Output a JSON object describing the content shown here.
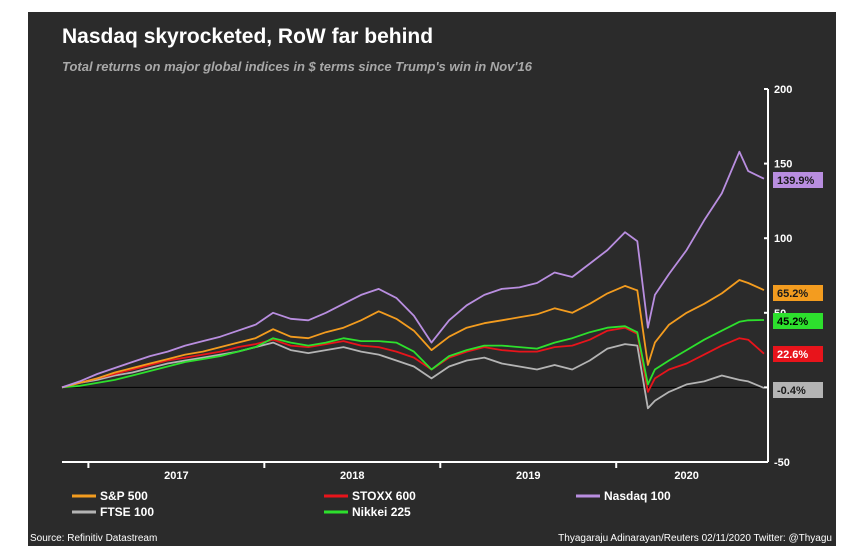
{
  "chart_data": {
    "type": "line",
    "title": "Nasdaq skyrocketed, RoW far behind",
    "subtitle": "Total returns on major global indices in $ terms since Trump's win in Nov'16",
    "ylim": [
      -50,
      200
    ],
    "yticks": [
      -50,
      0,
      50,
      100,
      150,
      200
    ],
    "yticklabels": [
      "-50",
      "",
      "50",
      "100",
      "150",
      "200"
    ],
    "xlim": [
      2016.85,
      2020.84
    ],
    "xticks": [
      2017,
      2018,
      2019,
      2020
    ],
    "xlabels": [
      {
        "x": 2017.5,
        "label": "2017"
      },
      {
        "x": 2018.5,
        "label": "2018"
      },
      {
        "x": 2019.5,
        "label": "2019"
      },
      {
        "x": 2020.4,
        "label": "2020"
      }
    ],
    "series": [
      {
        "name": "FTSE 100",
        "color": "#b4b4b4",
        "end_label": "-0.4%",
        "x": [
          2016.85,
          2016.95,
          2017.05,
          2017.15,
          2017.25,
          2017.35,
          2017.45,
          2017.55,
          2017.65,
          2017.75,
          2017.85,
          2017.95,
          2018.05,
          2018.15,
          2018.25,
          2018.35,
          2018.45,
          2018.55,
          2018.65,
          2018.75,
          2018.85,
          2018.95,
          2019.05,
          2019.15,
          2019.25,
          2019.35,
          2019.45,
          2019.55,
          2019.65,
          2019.75,
          2019.85,
          2019.95,
          2020.05,
          2020.12,
          2020.18,
          2020.22,
          2020.3,
          2020.4,
          2020.5,
          2020.6,
          2020.7,
          2020.75,
          2020.84
        ],
        "y": [
          0,
          3,
          5,
          8,
          10,
          13,
          16,
          18,
          20,
          22,
          24,
          27,
          30,
          25,
          23,
          25,
          27,
          24,
          22,
          18,
          14,
          6,
          14,
          18,
          20,
          16,
          14,
          12,
          15,
          12,
          18,
          26,
          29,
          28,
          -14,
          -9,
          -3,
          2,
          4,
          8,
          5,
          4,
          -0.4
        ]
      },
      {
        "name": "STOXX 600",
        "color": "#e8141b",
        "end_label": "22.6%",
        "x": [
          2016.85,
          2016.95,
          2017.05,
          2017.15,
          2017.25,
          2017.35,
          2017.45,
          2017.55,
          2017.65,
          2017.75,
          2017.85,
          2017.95,
          2018.05,
          2018.15,
          2018.25,
          2018.35,
          2018.45,
          2018.55,
          2018.65,
          2018.75,
          2018.85,
          2018.95,
          2019.05,
          2019.15,
          2019.25,
          2019.35,
          2019.45,
          2019.55,
          2019.65,
          2019.75,
          2019.85,
          2019.95,
          2020.05,
          2020.12,
          2020.18,
          2020.22,
          2020.3,
          2020.4,
          2020.5,
          2020.6,
          2020.7,
          2020.75,
          2020.84
        ],
        "y": [
          0,
          3,
          6,
          9,
          12,
          15,
          18,
          20,
          22,
          24,
          27,
          29,
          32,
          28,
          27,
          29,
          31,
          28,
          27,
          24,
          20,
          12,
          20,
          24,
          27,
          25,
          24,
          24,
          27,
          28,
          32,
          38,
          40,
          36,
          -3,
          6,
          12,
          16,
          22,
          28,
          33,
          32,
          22.6
        ]
      },
      {
        "name": "Nikkei 225",
        "color": "#2de02d",
        "end_label": "45.2%",
        "x": [
          2016.85,
          2016.95,
          2017.05,
          2017.15,
          2017.25,
          2017.35,
          2017.45,
          2017.55,
          2017.65,
          2017.75,
          2017.85,
          2017.95,
          2018.05,
          2018.15,
          2018.25,
          2018.35,
          2018.45,
          2018.55,
          2018.65,
          2018.75,
          2018.85,
          2018.95,
          2019.05,
          2019.15,
          2019.25,
          2019.35,
          2019.45,
          2019.55,
          2019.65,
          2019.75,
          2019.85,
          2019.95,
          2020.05,
          2020.12,
          2020.18,
          2020.22,
          2020.3,
          2020.4,
          2020.5,
          2020.6,
          2020.7,
          2020.75,
          2020.84
        ],
        "y": [
          0,
          1,
          3,
          5,
          8,
          11,
          14,
          17,
          19,
          21,
          24,
          27,
          33,
          30,
          28,
          30,
          33,
          31,
          31,
          30,
          24,
          12,
          21,
          25,
          28,
          28,
          27,
          26,
          30,
          33,
          37,
          40,
          41,
          37,
          2,
          12,
          18,
          25,
          32,
          38,
          44,
          45,
          45.2
        ]
      },
      {
        "name": "S&P 500",
        "color": "#f39c1f",
        "end_label": "65.2%",
        "x": [
          2016.85,
          2016.95,
          2017.05,
          2017.15,
          2017.25,
          2017.35,
          2017.45,
          2017.55,
          2017.65,
          2017.75,
          2017.85,
          2017.95,
          2018.05,
          2018.15,
          2018.25,
          2018.35,
          2018.45,
          2018.55,
          2018.65,
          2018.75,
          2018.85,
          2018.95,
          2019.05,
          2019.15,
          2019.25,
          2019.35,
          2019.45,
          2019.55,
          2019.65,
          2019.75,
          2019.85,
          2019.95,
          2020.05,
          2020.12,
          2020.18,
          2020.22,
          2020.3,
          2020.4,
          2020.5,
          2020.6,
          2020.7,
          2020.75,
          2020.84
        ],
        "y": [
          0,
          3,
          6,
          10,
          13,
          16,
          19,
          22,
          24,
          27,
          30,
          33,
          39,
          34,
          33,
          37,
          40,
          45,
          51,
          46,
          38,
          25,
          34,
          40,
          43,
          45,
          47,
          49,
          53,
          50,
          56,
          63,
          68,
          65,
          15,
          30,
          42,
          50,
          56,
          63,
          72,
          70,
          65.2
        ]
      },
      {
        "name": "Nasdaq 100",
        "color": "#b98ee0",
        "end_label": "139.9%",
        "x": [
          2016.85,
          2016.95,
          2017.05,
          2017.15,
          2017.25,
          2017.35,
          2017.45,
          2017.55,
          2017.65,
          2017.75,
          2017.85,
          2017.95,
          2018.05,
          2018.15,
          2018.25,
          2018.35,
          2018.45,
          2018.55,
          2018.65,
          2018.75,
          2018.85,
          2018.95,
          2019.05,
          2019.15,
          2019.25,
          2019.35,
          2019.45,
          2019.55,
          2019.65,
          2019.75,
          2019.85,
          2019.95,
          2020.05,
          2020.12,
          2020.18,
          2020.22,
          2020.3,
          2020.4,
          2020.5,
          2020.6,
          2020.7,
          2020.75,
          2020.84
        ],
        "y": [
          0,
          4,
          9,
          13,
          17,
          21,
          24,
          28,
          31,
          34,
          38,
          42,
          50,
          46,
          45,
          50,
          56,
          62,
          66,
          60,
          48,
          30,
          45,
          55,
          62,
          66,
          67,
          70,
          77,
          74,
          83,
          92,
          104,
          98,
          40,
          62,
          76,
          92,
          112,
          130,
          158,
          145,
          139.9
        ]
      }
    ],
    "end_label_values": [
      139.9,
      65.2,
      45.2,
      22.6,
      -0.4
    ],
    "legend": [
      {
        "name": "S&P 500",
        "color": "#f39c1f"
      },
      {
        "name": "STOXX 600",
        "color": "#e8141b"
      },
      {
        "name": "Nasdaq 100",
        "color": "#b98ee0"
      },
      {
        "name": "FTSE 100",
        "color": "#b4b4b4"
      },
      {
        "name": "Nikkei 225",
        "color": "#2de02d"
      }
    ],
    "source": "Source: Refinitiv Datastream",
    "credit": "Thyagaraju Adinarayan/Reuters 02/11/2020 Twitter: @Thyagu"
  }
}
